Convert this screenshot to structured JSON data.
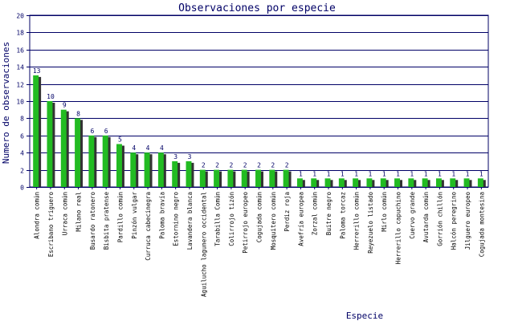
{
  "chart_data": {
    "type": "bar",
    "title": "Observaciones por especie",
    "xlabel": "Especie",
    "ylabel": "Numero de observaciones",
    "ylim": [
      0,
      20
    ],
    "yticks": [
      0,
      2,
      4,
      6,
      8,
      10,
      12,
      14,
      16,
      18,
      20
    ],
    "grid": true,
    "categories": [
      "Alondra común",
      "Escribano triguero",
      "Urraca común",
      "Milano real",
      "Busardo ratonero",
      "Bisbita pratense",
      "Pardillo común",
      "Pinzón vulgar",
      "Curruca cabecinegra",
      "Paloma bravía",
      "Estornino negro",
      "Lavandera blanca",
      "Aguilucho lagunero occidental",
      "Tarabilla Común",
      "Colirrojo tizón",
      "Petirrojo europeo",
      "Cogujada común",
      "Mosquitero común",
      "Perdiz roja",
      "Avefría europea",
      "Zorzal común",
      "Buitre negro",
      "Paloma torcaz",
      "Herrerillo común",
      "Reyezuelo listado",
      "Mirlo común",
      "Herrerillo capuchino",
      "Cuervo grande",
      "Avutarda común",
      "Gorrión chillón",
      "Halcón peregrino",
      "Jilguero europeo",
      "Cogujada montesina"
    ],
    "values": [
      13,
      10,
      9,
      8,
      6,
      6,
      5,
      4,
      4,
      4,
      3,
      3,
      2,
      2,
      2,
      2,
      2,
      2,
      2,
      1,
      1,
      1,
      1,
      1,
      1,
      1,
      1,
      1,
      1,
      1,
      1,
      1,
      1
    ],
    "colors": {
      "bar": "#22bb22",
      "shadow": "#333333",
      "grid": "#000066",
      "text": "#000066",
      "label": "#000000"
    }
  }
}
